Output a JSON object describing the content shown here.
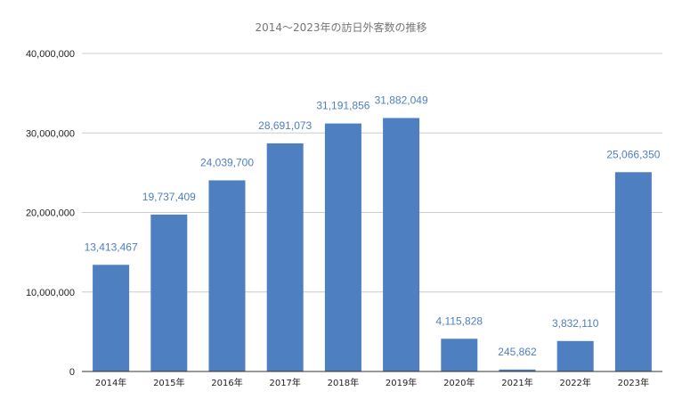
{
  "chart_data": {
    "type": "bar",
    "title": "2014～2023年の訪日外客数の推移",
    "xlabel": "",
    "ylabel": "",
    "categories": [
      "2014年",
      "2015年",
      "2016年",
      "2017年",
      "2018年",
      "2019年",
      "2020年",
      "2021年",
      "2022年",
      "2023年"
    ],
    "values": [
      13413467,
      19737409,
      24039700,
      28691073,
      31191856,
      31882049,
      4115828,
      245862,
      3832110,
      25066350
    ],
    "data_labels": [
      "13,413,467",
      "19,737,409",
      "24,039,700",
      "28,691,073",
      "31,191,856",
      "31,882,049",
      "4,115,828",
      "245,862",
      "3,832,110",
      "25,066,350"
    ],
    "ylim": [
      0,
      40000000
    ],
    "y_ticks": [
      0,
      10000000,
      20000000,
      30000000,
      40000000
    ],
    "y_tick_labels": [
      "0",
      "10,000,000",
      "20,000,000",
      "30,000,000",
      "40,000,000"
    ],
    "grid": true,
    "legend": "none",
    "colors": {
      "bar": "#4e7fc0",
      "data_label": "#4e7fc0",
      "grid": "#cccccc",
      "title": "#757575",
      "axis_text": "#222222"
    }
  }
}
